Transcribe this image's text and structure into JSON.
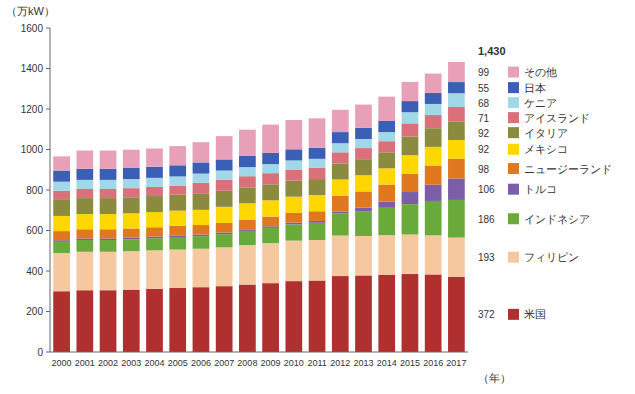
{
  "chart_data": {
    "type": "bar",
    "stacked": true,
    "categories": [
      "2000",
      "2001",
      "2002",
      "2003",
      "2004",
      "2005",
      "2006",
      "2007",
      "2008",
      "2009",
      "2010",
      "2011",
      "2012",
      "2013",
      "2014",
      "2015",
      "2016",
      "2017"
    ],
    "series": [
      {
        "name": "米国",
        "color": "#b03030",
        "values": [
          300,
          305,
          305,
          308,
          312,
          316,
          320,
          325,
          333,
          340,
          350,
          353,
          375,
          378,
          382,
          385,
          383,
          372
        ]
      },
      {
        "name": "フィリピン",
        "color": "#f5c8a0",
        "values": [
          189,
          190,
          190,
          190,
          190,
          190,
          190,
          192,
          195,
          198,
          200,
          200,
          200,
          195,
          195,
          195,
          193,
          193
        ]
      },
      {
        "name": "インドネシア",
        "color": "#6aaa3a",
        "values": [
          55,
          58,
          58,
          58,
          60,
          62,
          62,
          65,
          70,
          75,
          80,
          85,
          110,
          120,
          135,
          150,
          170,
          186
        ]
      },
      {
        "name": "トルコ",
        "color": "#7b5ea7",
        "values": [
          8,
          8,
          8,
          8,
          8,
          8,
          8,
          8,
          8,
          8,
          9,
          9,
          9,
          20,
          30,
          60,
          80,
          106
        ]
      },
      {
        "name": "ニュージーランド",
        "color": "#e07820",
        "values": [
          45,
          45,
          45,
          46,
          46,
          47,
          47,
          47,
          48,
          48,
          48,
          48,
          78,
          80,
          85,
          90,
          95,
          98
        ]
      },
      {
        "name": "メキシコ",
        "color": "#ffd700",
        "values": [
          75,
          75,
          75,
          75,
          75,
          75,
          75,
          80,
          80,
          80,
          80,
          80,
          80,
          80,
          80,
          92,
          92,
          92
        ]
      },
      {
        "name": "イタリア",
        "color": "#8b8b40",
        "values": [
          79,
          79,
          79,
          79,
          79,
          79,
          79,
          79,
          79,
          79,
          79,
          79,
          79,
          79,
          79,
          92,
          92,
          92
        ]
      },
      {
        "name": "アイスランド",
        "color": "#d9707a",
        "values": [
          45,
          45,
          45,
          45,
          45,
          45,
          55,
          55,
          55,
          55,
          55,
          55,
          55,
          55,
          55,
          65,
          65,
          71
        ]
      },
      {
        "name": "ケニア",
        "color": "#a0d8e8",
        "values": [
          45,
          45,
          45,
          45,
          45,
          45,
          45,
          45,
          45,
          45,
          45,
          45,
          45,
          45,
          45,
          55,
          55,
          68
        ]
      },
      {
        "name": "日本",
        "color": "#3a5fb5",
        "values": [
          55,
          55,
          55,
          55,
          55,
          55,
          55,
          55,
          55,
          55,
          55,
          55,
          55,
          55,
          55,
          55,
          55,
          55
        ]
      },
      {
        "name": "その他",
        "color": "#e8a0b8",
        "values": [
          70,
          90,
          90,
          90,
          90,
          95,
          100,
          115,
          130,
          140,
          145,
          145,
          110,
          115,
          120,
          95,
          95,
          99
        ]
      }
    ],
    "ylim": [
      0,
      1600
    ],
    "yticks": [
      0,
      200,
      400,
      600,
      800,
      1000,
      1200,
      1400,
      1600
    ],
    "ylabel": "（万kW）",
    "xlabel": "（年）",
    "annotations": [
      "1,430",
      "99",
      "55",
      "68",
      "71",
      "92",
      "92",
      "98",
      "106",
      "186",
      "193",
      "372"
    ],
    "grid": false,
    "legend": "right"
  }
}
